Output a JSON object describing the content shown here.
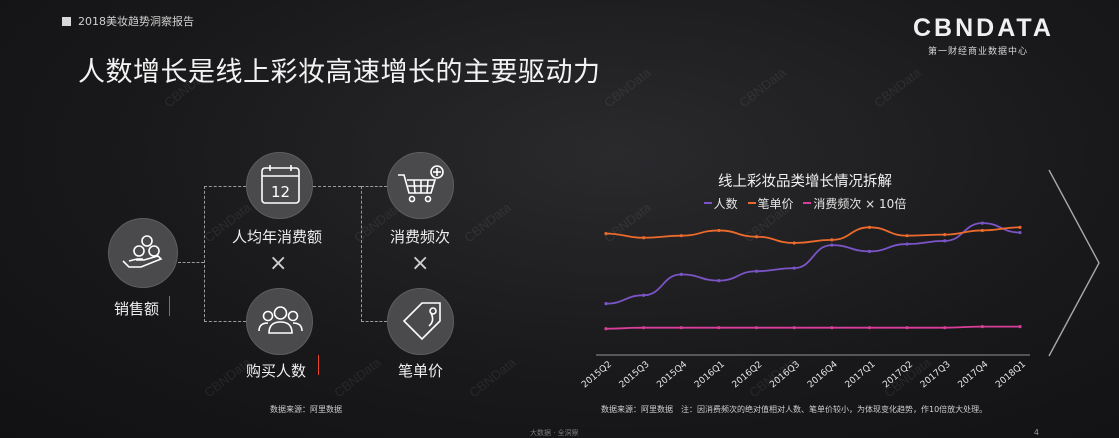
{
  "header": {
    "report_title": "2018美妆趋势洞察报告",
    "page_title": "人数增长是线上彩妆高速增长的主要驱动力"
  },
  "logo": {
    "main": "CBNDATA",
    "sub": "第一财经商业数据中心"
  },
  "watermark_text": "CBNData",
  "diagram": {
    "sales_label": "销售额",
    "per_capita_label": "人均年消费额",
    "frequency_label": "消费频次",
    "buyers_label": "购买人数",
    "unit_price_label": "笔单价",
    "times_symbol": "×",
    "calendar_day": "12",
    "source": "数据来源：阿里数据",
    "icons": {
      "sales": "coins-hand-icon",
      "per_capita": "calendar-icon",
      "frequency": "shopping-cart-plus-icon",
      "buyers": "people-group-icon",
      "unit_price": "price-tag-icon"
    },
    "up_marker_color": "#e8452c"
  },
  "chart_data": {
    "type": "line",
    "title": "线上彩妆品类增长情况拆解",
    "categories": [
      "2015Q2",
      "2015Q3",
      "2015Q4",
      "2016Q1",
      "2016Q2",
      "2016Q3",
      "2016Q4",
      "2017Q1",
      "2017Q2",
      "2017Q3",
      "2017Q4",
      "2018Q1"
    ],
    "x_tick_labels": [
      "2015Q2",
      "2015Q3",
      "2015Q4",
      "2016Q1",
      "2016Q2",
      "2016Q3",
      "2016Q4",
      "2017Q1",
      "2017Q2",
      "2017Q3",
      "2017Q4",
      "2018Q1"
    ],
    "series": [
      {
        "name": "人数",
        "color": "#7b55c7",
        "values": [
          0.3,
          0.38,
          0.58,
          0.52,
          0.61,
          0.64,
          0.86,
          0.8,
          0.87,
          0.9,
          1.07,
          0.98
        ]
      },
      {
        "name": "笔单价",
        "color": "#ec6a2c",
        "values": [
          0.97,
          0.93,
          0.95,
          1.0,
          0.94,
          0.88,
          0.91,
          1.03,
          0.95,
          0.96,
          1.0,
          1.03
        ]
      },
      {
        "name": "消费频次 × 10倍",
        "color": "#d93f9a",
        "values": [
          0.06,
          0.07,
          0.07,
          0.07,
          0.07,
          0.07,
          0.07,
          0.07,
          0.07,
          0.07,
          0.08,
          0.08
        ]
      }
    ],
    "grid": false,
    "legend_position": "top",
    "y_axis_labels_shown": false,
    "source": "数据来源：阿里数据　注：因消费频次的绝对值相对人数、笔单价较小，为体现变化趋势，作10倍放大处理。"
  },
  "footer": {
    "text": "大数据 · 全洞察",
    "page_number": "4"
  }
}
